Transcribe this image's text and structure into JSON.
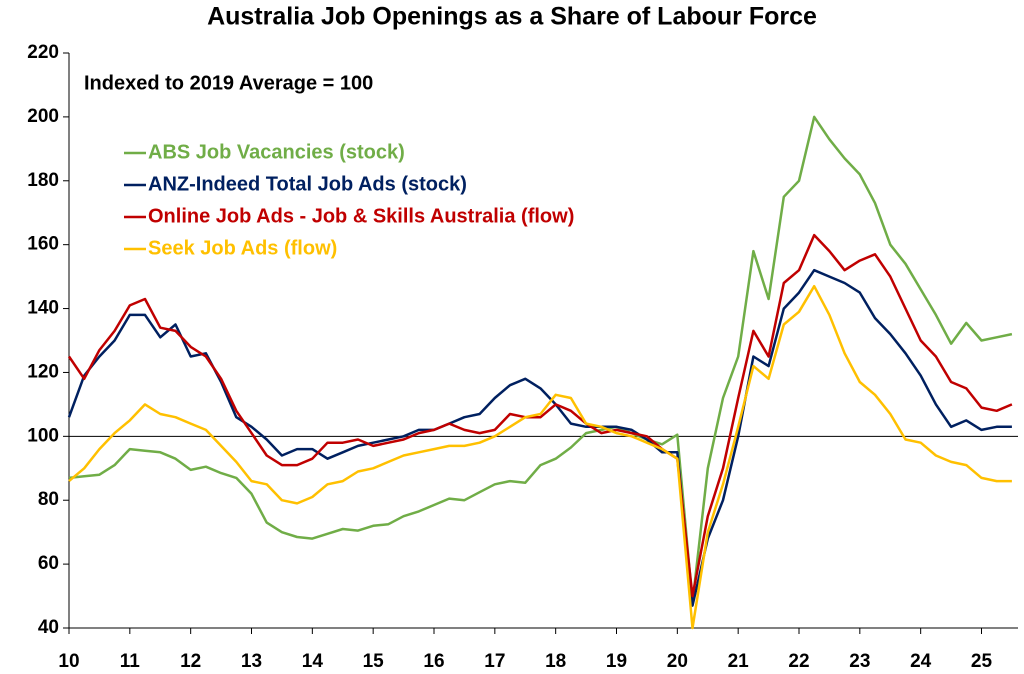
{
  "chart_data": {
    "type": "line",
    "title": "Australia Job Openings as a Share of Labour Force",
    "annotation": "Indexed to 2019 Average = 100",
    "legend": "upper left",
    "hline": 100,
    "xlim": [
      2010,
      2025.6
    ],
    "ylim": [
      40,
      220
    ],
    "yticks": [
      40,
      60,
      80,
      100,
      120,
      140,
      160,
      180,
      200,
      220
    ],
    "xticks": [
      {
        "value": 2010,
        "label": "10"
      },
      {
        "value": 2011,
        "label": "11"
      },
      {
        "value": 2012,
        "label": "12"
      },
      {
        "value": 2013,
        "label": "13"
      },
      {
        "value": 2014,
        "label": "14"
      },
      {
        "value": 2015,
        "label": "15"
      },
      {
        "value": 2016,
        "label": "16"
      },
      {
        "value": 2017,
        "label": "17"
      },
      {
        "value": 2018,
        "label": "18"
      },
      {
        "value": 2019,
        "label": "19"
      },
      {
        "value": 2020,
        "label": "20"
      },
      {
        "value": 2021,
        "label": "21"
      },
      {
        "value": 2022,
        "label": "22"
      },
      {
        "value": 2023,
        "label": "23"
      },
      {
        "value": 2024,
        "label": "24"
      },
      {
        "value": 2025,
        "label": "25"
      }
    ],
    "x": [
      2010,
      2010.25,
      2010.5,
      2010.75,
      2011,
      2011.25,
      2011.5,
      2011.75,
      2012,
      2012.25,
      2012.5,
      2012.75,
      2013,
      2013.25,
      2013.5,
      2013.75,
      2014,
      2014.25,
      2014.5,
      2014.75,
      2015,
      2015.25,
      2015.5,
      2015.75,
      2016,
      2016.25,
      2016.5,
      2016.75,
      2017,
      2017.25,
      2017.5,
      2017.75,
      2018,
      2018.25,
      2018.5,
      2018.75,
      2019,
      2019.25,
      2019.5,
      2019.75,
      2020,
      2020.25,
      2020.5,
      2020.75,
      2021,
      2021.25,
      2021.5,
      2021.75,
      2022,
      2022.25,
      2022.5,
      2022.75,
      2023,
      2023.25,
      2023.5,
      2023.75,
      2024,
      2024.25,
      2024.5,
      2024.75,
      2025,
      2025.25,
      2025.5
    ],
    "series": [
      {
        "name": "ABS Job Vacancies (stock)",
        "color": "#70ad47",
        "values": [
          87,
          87.5,
          88,
          91,
          96,
          95.5,
          95,
          93,
          89.5,
          90.5,
          88.5,
          87,
          82,
          73,
          70,
          68.5,
          68,
          69.5,
          71,
          70.5,
          72,
          72.5,
          75,
          76.5,
          78.5,
          80.5,
          80,
          82.5,
          85,
          86,
          85.5,
          91,
          93,
          96.5,
          101,
          102,
          103,
          101,
          99,
          97.5,
          100.5,
          48,
          90,
          112,
          125,
          158,
          143,
          175,
          180,
          200,
          193,
          187,
          182,
          173,
          160,
          154,
          146,
          138,
          129,
          135.5,
          130,
          131,
          132
        ]
      },
      {
        "name": "ANZ-Indeed Total Job Ads (stock)",
        "color": "#002060",
        "values": [
          106,
          119,
          125,
          130,
          138,
          138,
          131,
          135,
          125,
          126,
          117,
          106,
          103,
          99,
          94,
          96,
          96,
          93,
          95,
          97,
          98,
          99,
          100,
          102,
          102,
          104,
          106,
          107,
          112,
          116,
          118,
          115,
          110,
          104,
          103,
          103,
          103,
          102,
          99,
          95,
          95,
          47,
          68,
          80,
          100,
          125,
          122,
          140,
          145,
          152,
          150,
          148,
          145,
          137,
          132,
          126,
          119,
          110,
          103,
          105,
          102,
          103,
          103
        ]
      },
      {
        "name": "Online Job Ads - Job & Skills Australia (flow)",
        "color": "#c00000",
        "values": [
          125,
          118,
          127,
          133,
          141,
          143,
          134,
          133,
          128,
          125,
          118,
          108,
          101,
          94,
          91,
          91,
          93,
          98,
          98,
          99,
          97,
          98,
          99,
          101,
          102,
          104,
          102,
          101,
          102,
          107,
          106,
          106,
          110,
          108,
          104,
          101,
          102,
          101,
          100,
          96,
          93,
          50,
          75,
          90,
          112,
          133,
          125,
          148,
          152,
          163,
          158,
          152,
          155,
          157,
          150,
          140,
          130,
          125,
          117,
          115,
          109,
          108,
          110
        ]
      },
      {
        "name": "Seek Job Ads (flow)",
        "color": "#ffc000",
        "values": [
          86,
          90,
          96,
          101,
          105,
          110,
          107,
          106,
          104,
          102,
          97,
          92,
          86,
          85,
          80,
          79,
          81,
          85,
          86,
          89,
          90,
          92,
          94,
          95,
          96,
          97,
          97,
          98,
          100,
          103,
          106,
          107,
          113,
          112,
          104,
          103,
          101,
          100,
          98,
          96,
          93,
          40,
          70,
          85,
          103,
          122,
          118,
          135,
          139,
          147,
          138,
          126,
          117,
          113,
          107,
          99,
          98,
          94,
          92,
          91,
          87,
          86,
          86
        ]
      }
    ]
  }
}
